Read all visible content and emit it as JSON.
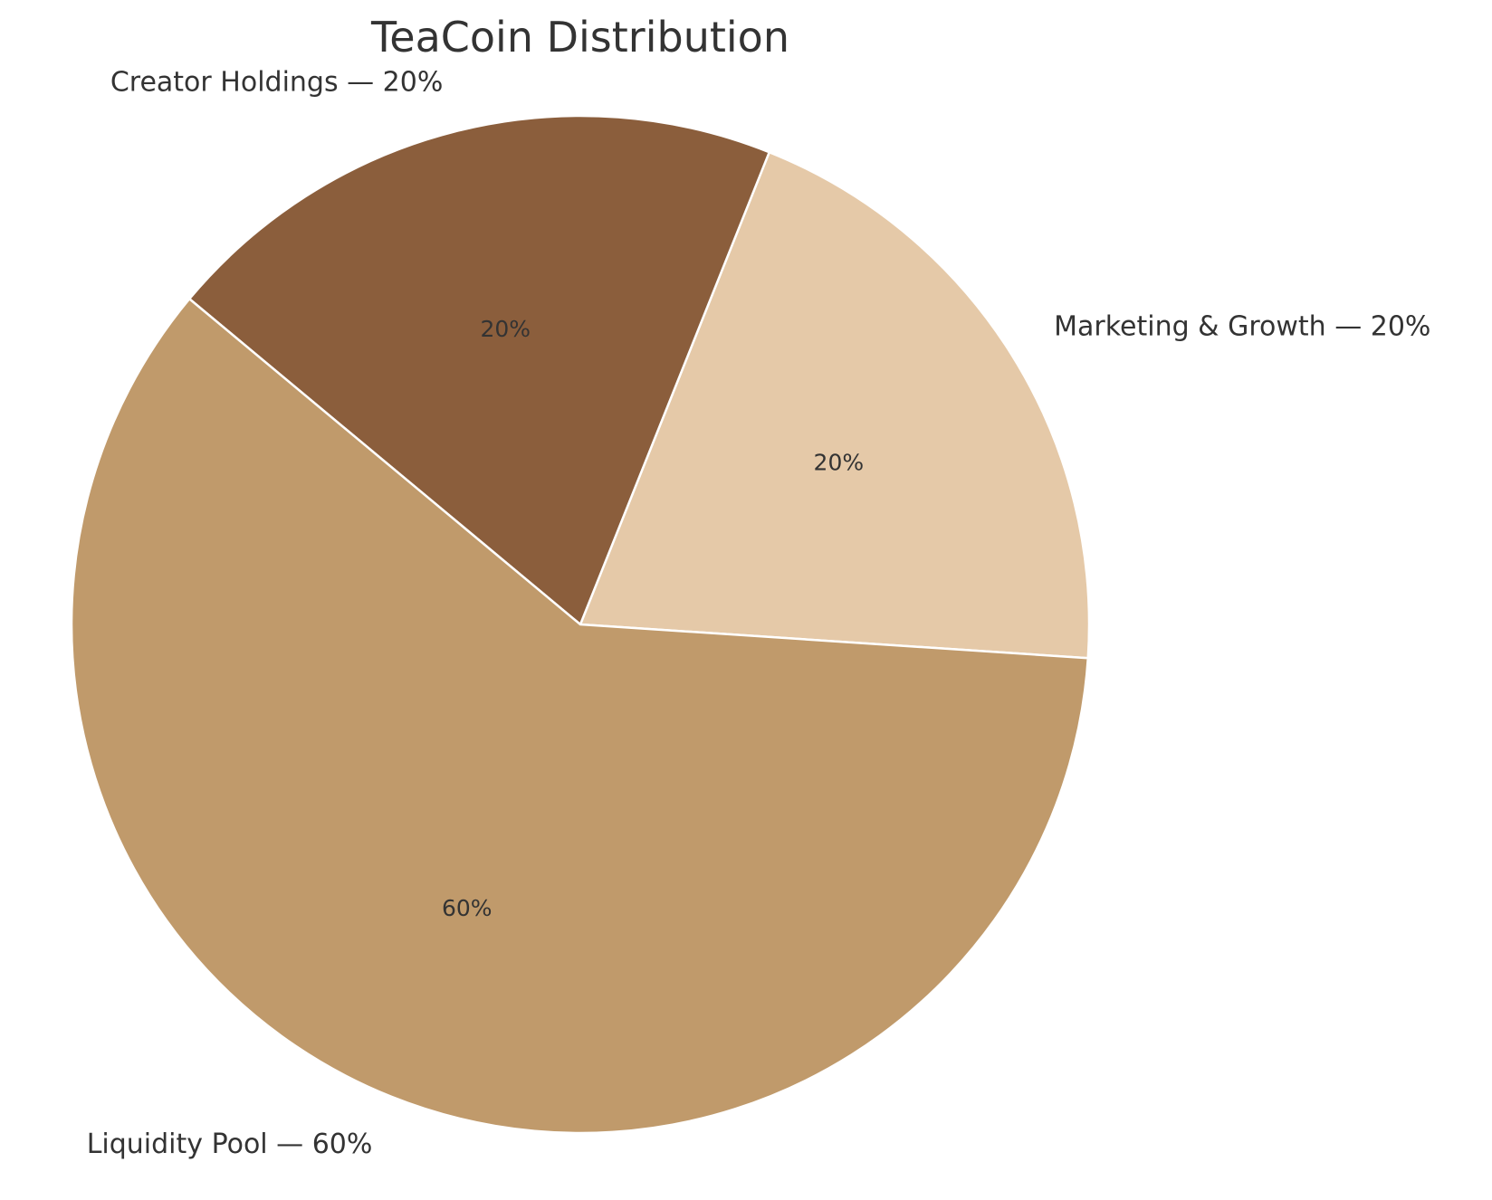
{
  "chart_data": {
    "type": "pie",
    "title": "TeaCoin Distribution",
    "categories": [
      "Liquidity Pool",
      "Creator Holdings",
      "Marketing & Growth"
    ],
    "values": [
      60,
      20,
      20
    ],
    "labels": [
      "Liquidity Pool — 60%",
      "Creator Holdings — 20%",
      "Marketing & Growth — 20%"
    ],
    "autopct": [
      "60%",
      "20%",
      "20%"
    ],
    "colors": [
      "#c09a6b",
      "#8b5e3c",
      "#e5c9a8"
    ],
    "start_angle_deg": -3.8,
    "direction": "counterclockwise",
    "edge_color": "#ffffff",
    "legend": null
  }
}
